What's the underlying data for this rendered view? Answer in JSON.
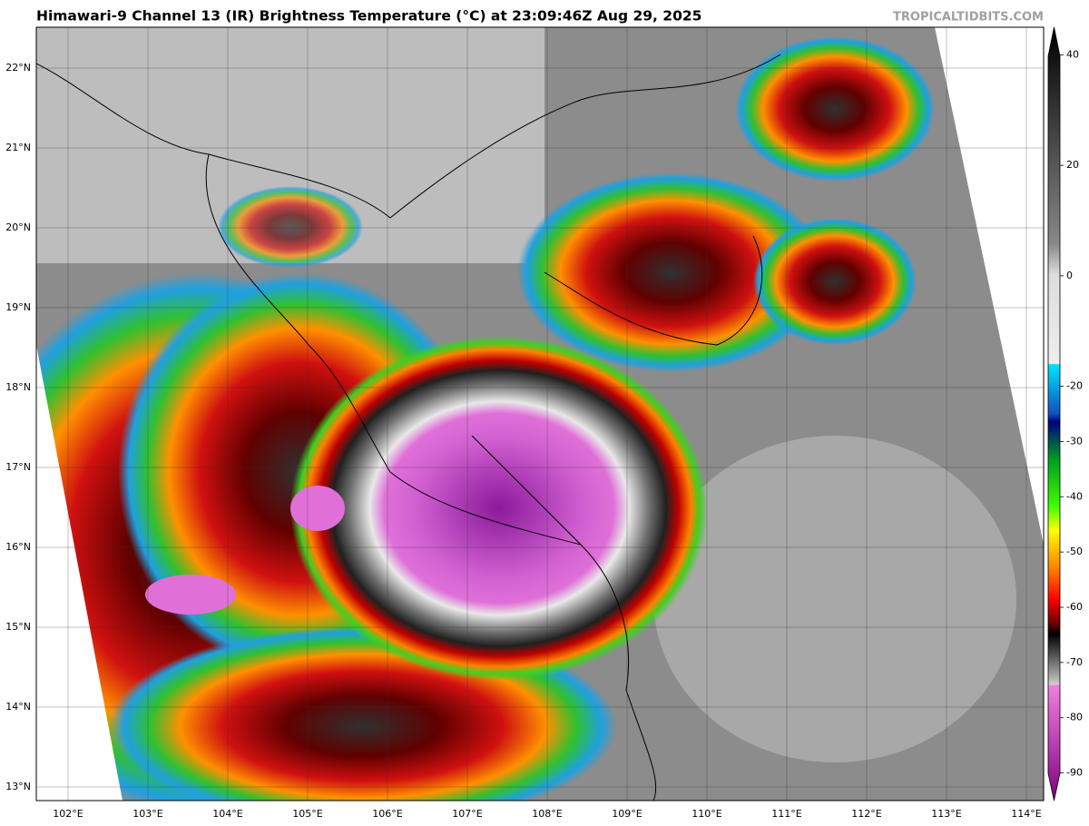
{
  "header": {
    "title": "Himawari-9 Channel 13 (IR) Brightness Temperature (°C) at 23:09:46Z Aug 29, 2025",
    "credit": "TROPICALTIDBITS.COM"
  },
  "map": {
    "latitude_labels": [
      "22°N",
      "21°N",
      "20°N",
      "19°N",
      "18°N",
      "17°N",
      "16°N",
      "15°N",
      "14°N",
      "13°N"
    ],
    "longitude_labels": [
      "102°E",
      "103°E",
      "104°E",
      "105°E",
      "106°E",
      "107°E",
      "108°E",
      "109°E",
      "110°E",
      "111°E",
      "112°E",
      "113°E",
      "114°E"
    ]
  },
  "colorbar": {
    "range": [
      -95,
      45
    ],
    "ticks": [
      40,
      20,
      0,
      -20,
      -30,
      -40,
      -50,
      -60,
      -70,
      -80,
      -90
    ]
  }
}
